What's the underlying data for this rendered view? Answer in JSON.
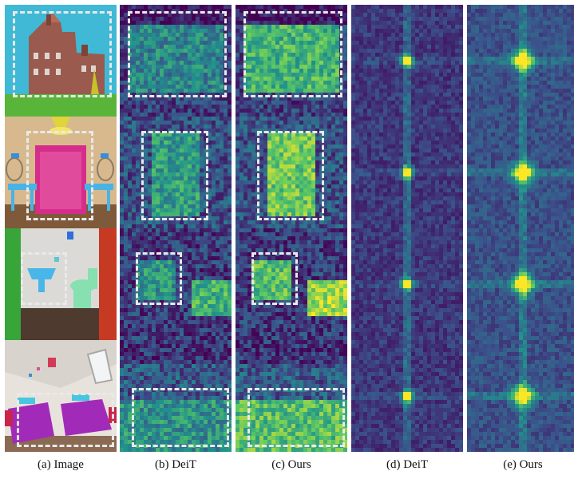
{
  "figure": {
    "columns": [
      {
        "caption": "(a) Image",
        "kind": "image"
      },
      {
        "caption": "(b) DeiT",
        "kind": "attention"
      },
      {
        "caption": "(c) Ours",
        "kind": "attention"
      },
      {
        "caption": "(d) DeiT",
        "kind": "spectrum"
      },
      {
        "caption": "(e) Ours",
        "kind": "spectrum"
      }
    ],
    "rows": [
      {
        "scene": "building with lawn"
      },
      {
        "scene": "pink door with blue tables"
      },
      {
        "scene": "bathroom with sink and toilet"
      },
      {
        "scene": "bedroom with two purple beds"
      }
    ]
  },
  "colors": {
    "viridis_dark": "#440154",
    "viridis_mid": "#21918c",
    "viridis_bright": "#fde725",
    "bbox": "#e9e9e9"
  }
}
